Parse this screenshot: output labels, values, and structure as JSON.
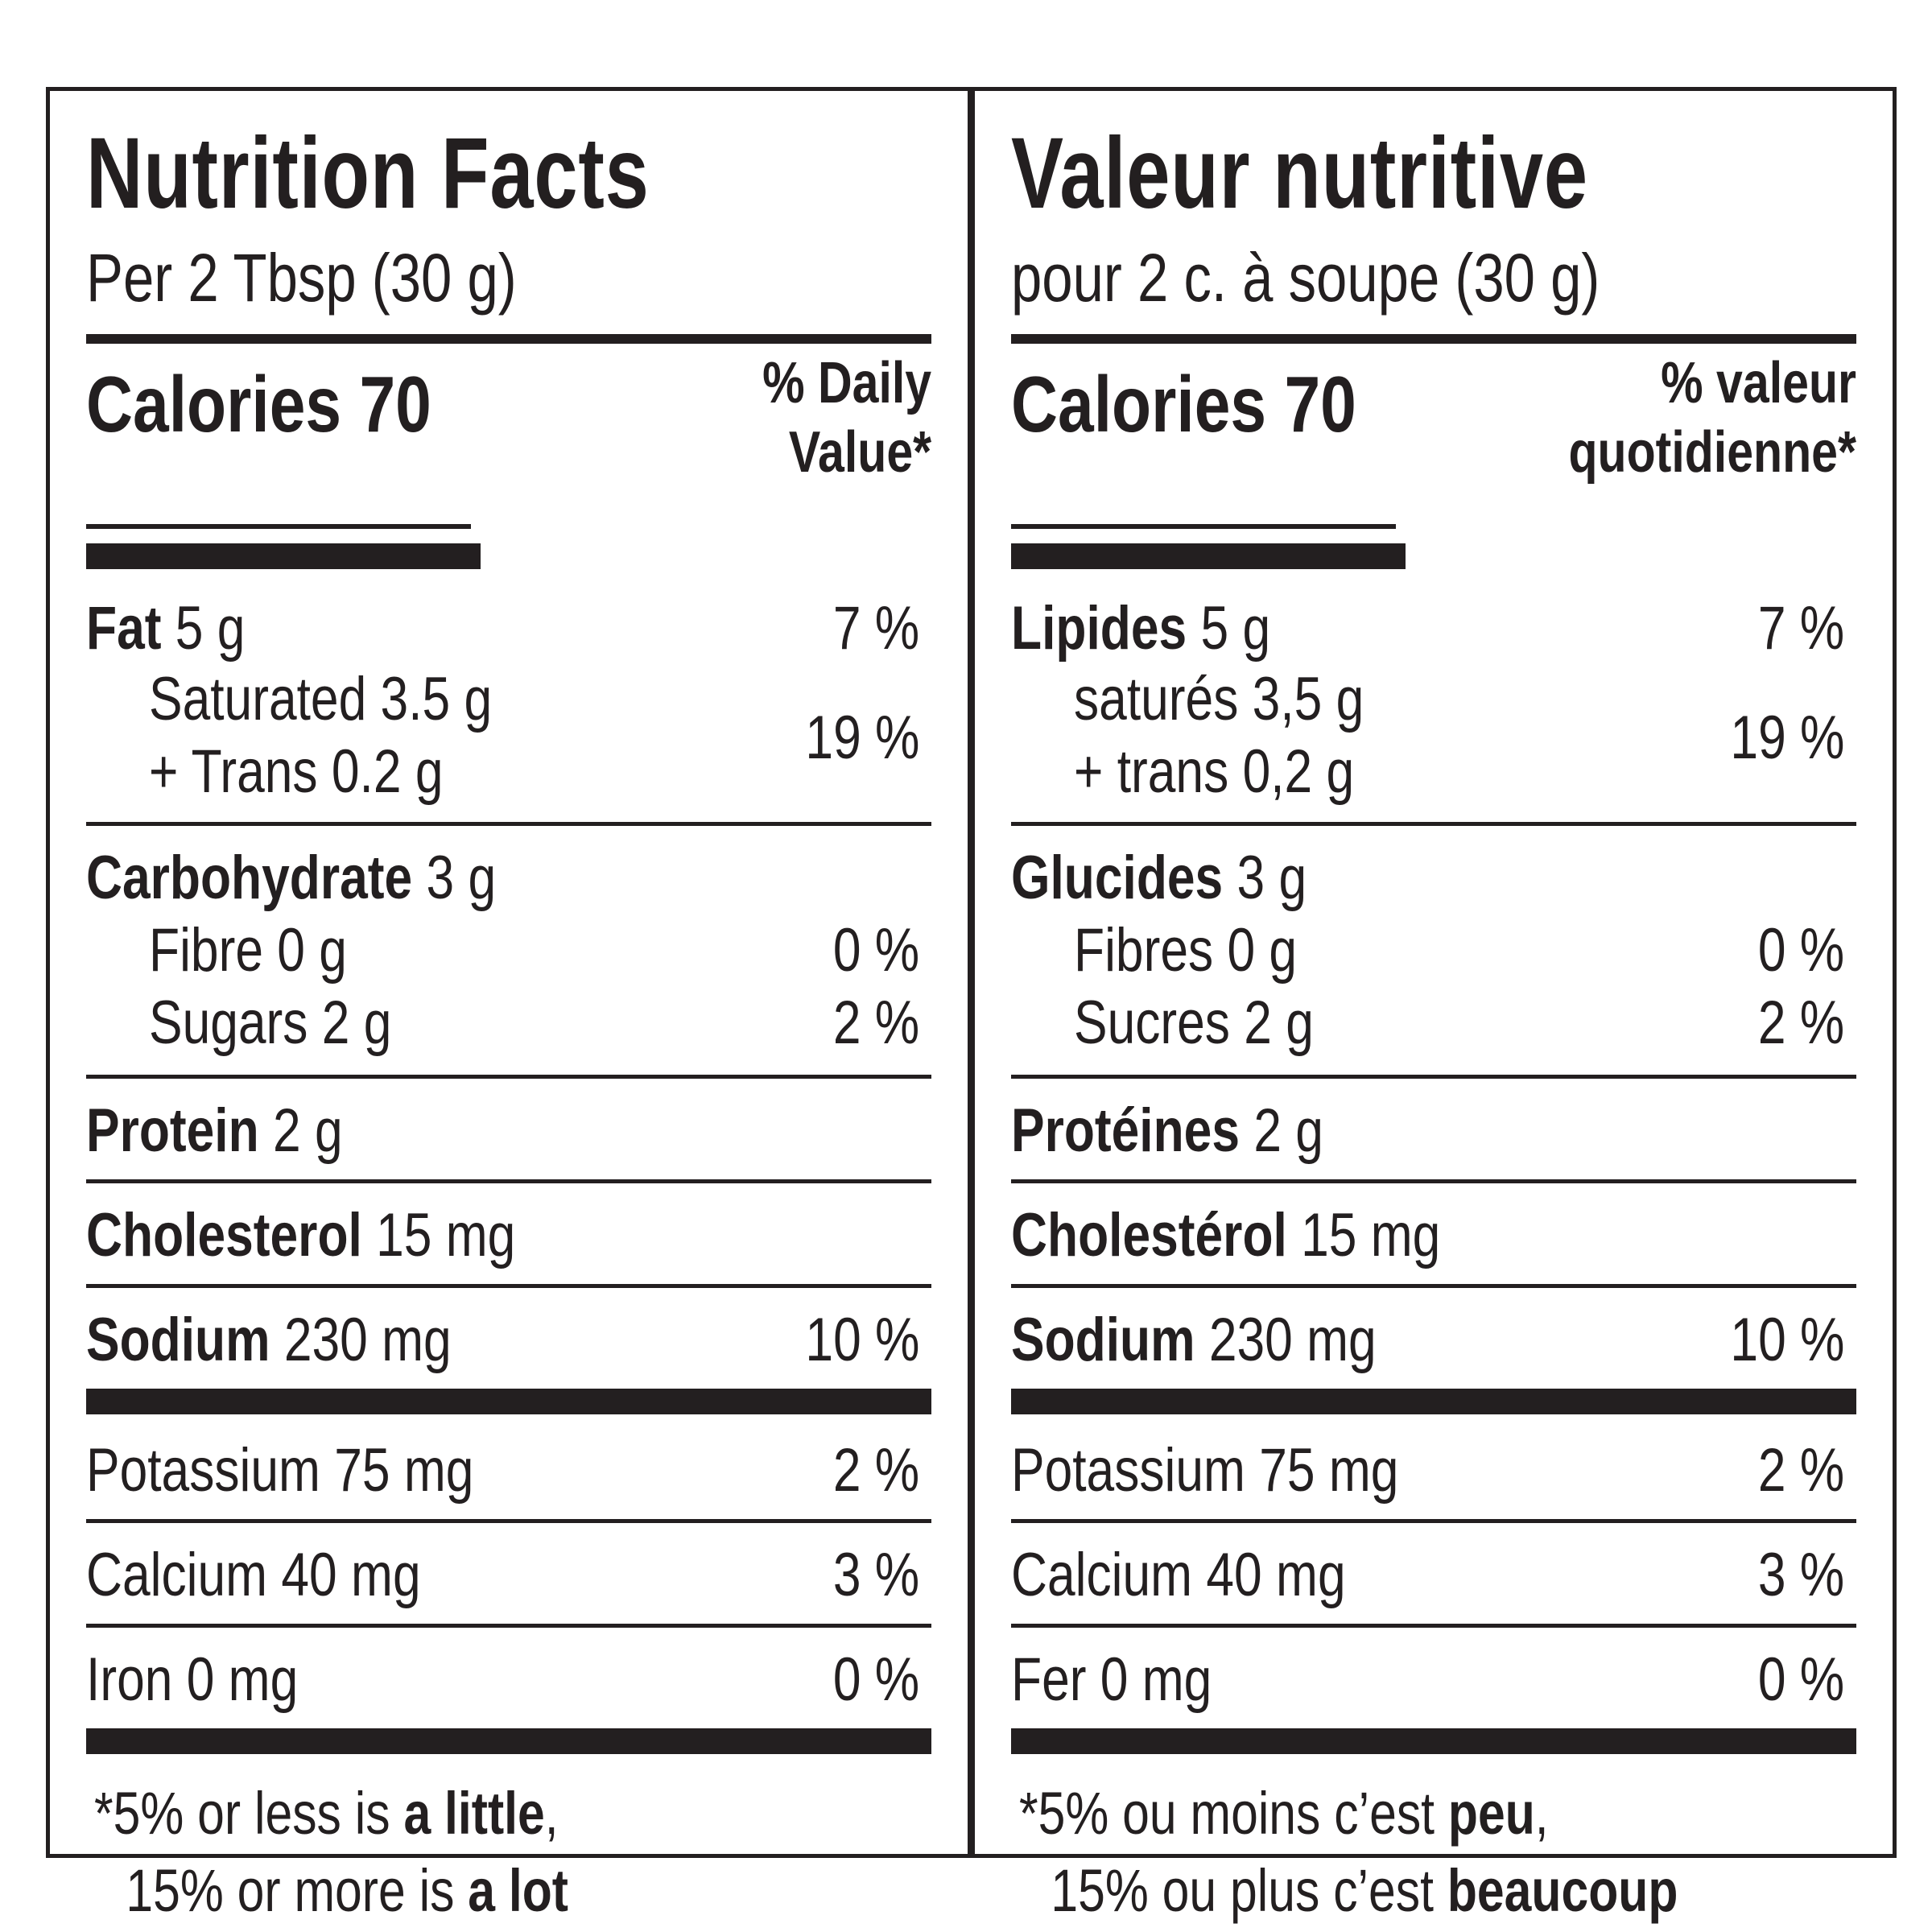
{
  "english": {
    "title": "Nutrition Facts",
    "serving": "Per 2 Tbsp (30 g)",
    "calories": "Calories 70",
    "dv_line1": "% Daily",
    "dv_line2": "Value*",
    "fat_label": "Fat",
    "fat_amount": " 5 g",
    "fat_dv": "7 %",
    "saturated": "Saturated 3.5 g",
    "trans": "+ Trans 0.2 g",
    "sat_trans_dv": "19 %",
    "carb_label": "Carbohydrate",
    "carb_amount": " 3 g",
    "fibre": "Fibre 0 g",
    "fibre_dv": "0 %",
    "sugars": "Sugars 2 g",
    "sugars_dv": "2 %",
    "protein_label": "Protein",
    "protein_amount": " 2 g",
    "cholesterol_label": "Cholesterol",
    "cholesterol_amount": " 15 mg",
    "sodium_label": "Sodium",
    "sodium_amount": " 230 mg",
    "sodium_dv": "10 %",
    "potassium": "Potassium 75 mg",
    "potassium_dv": "2 %",
    "calcium": "Calcium 40 mg",
    "calcium_dv": "3 %",
    "iron": "Iron 0 mg",
    "iron_dv": "0 %",
    "foot_1a": "*5% or less is ",
    "foot_1b": "a little",
    "foot_1c": ",",
    "foot_2a": "15% or more is ",
    "foot_2b": "a lot"
  },
  "french": {
    "title": "Valeur nutritive",
    "serving": "pour 2 c. à soupe (30 g)",
    "calories": "Calories 70",
    "dv_line1": "% valeur",
    "dv_line2": "quotidienne*",
    "fat_label": "Lipides",
    "fat_amount": " 5 g",
    "fat_dv": "7 %",
    "saturated": "saturés 3,5 g",
    "trans": "+ trans 0,2 g",
    "sat_trans_dv": "19 %",
    "carb_label": "Glucides",
    "carb_amount": " 3 g",
    "fibre": "Fibres 0 g",
    "fibre_dv": "0 %",
    "sugars": "Sucres 2 g",
    "sugars_dv": "2 %",
    "protein_label": "Protéines",
    "protein_amount": " 2 g",
    "cholesterol_label": "Cholestérol",
    "cholesterol_amount": " 15 mg",
    "sodium_label": "Sodium",
    "sodium_amount": " 230 mg",
    "sodium_dv": "10 %",
    "potassium": "Potassium 75 mg",
    "potassium_dv": "2 %",
    "calcium": "Calcium 40 mg",
    "calcium_dv": "3 %",
    "iron": "Fer 0 mg",
    "iron_dv": "0 %",
    "foot_1a": "*5% ou moins c’est ",
    "foot_1b": "peu",
    "foot_1c": ",",
    "foot_2a": "15% ou plus c’est ",
    "foot_2b": "beaucoup"
  }
}
